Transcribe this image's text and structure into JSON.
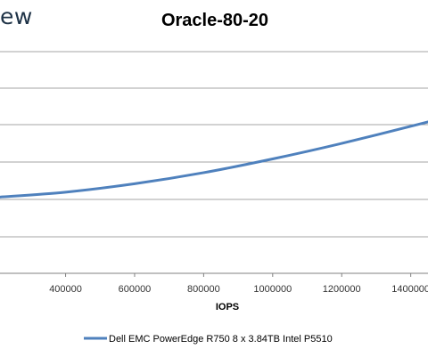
{
  "watermark": {
    "text": "ew"
  },
  "chart_data": {
    "type": "line",
    "title": "Oracle-80-20",
    "xlabel": "IOPS",
    "ylabel": "",
    "x_ticks": [
      400000,
      600000,
      800000,
      1000000,
      1200000,
      1400000
    ],
    "x_tick_labels": [
      "400000",
      "600000",
      "800000",
      "1000000",
      "1200000",
      "1400000"
    ],
    "xlim": [
      210000,
      1450000
    ],
    "ylim": [
      0,
      1
    ],
    "grid": true,
    "legend_position": "bottom",
    "series": [
      {
        "name": "Dell EMC PowerEdge R750 8 x 3.84TB Intel P5510",
        "color": "#4f81bd",
        "x": [
          210000,
          400000,
          600000,
          800000,
          1000000,
          1200000,
          1450000
        ],
        "y": [
          0.344,
          0.366,
          0.404,
          0.454,
          0.516,
          0.586,
          0.683
        ]
      }
    ]
  }
}
